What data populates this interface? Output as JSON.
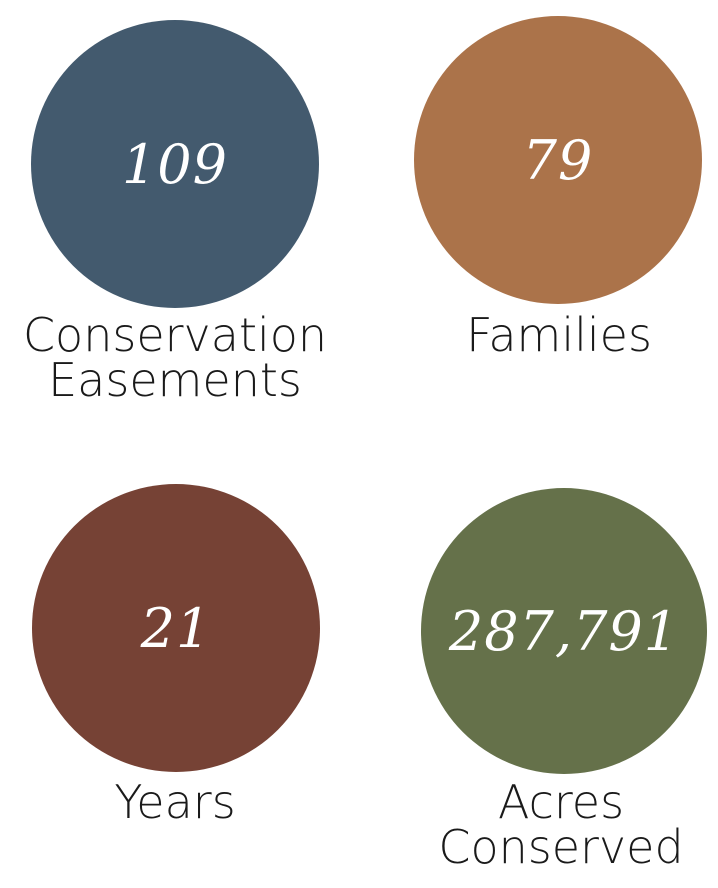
{
  "stats": [
    {
      "value": "109",
      "label_line1": "Conservation",
      "label_line2": "Easements",
      "color": "#435a6e"
    },
    {
      "value": "79",
      "label_line1": "Families",
      "label_line2": "",
      "color": "#ab734a"
    },
    {
      "value": "21",
      "label_line1": "Years",
      "label_line2": "",
      "color": "#764235"
    },
    {
      "value": "287,791",
      "label_line1": "Acres",
      "label_line2": "Conserved",
      "color": "#65714a"
    }
  ]
}
